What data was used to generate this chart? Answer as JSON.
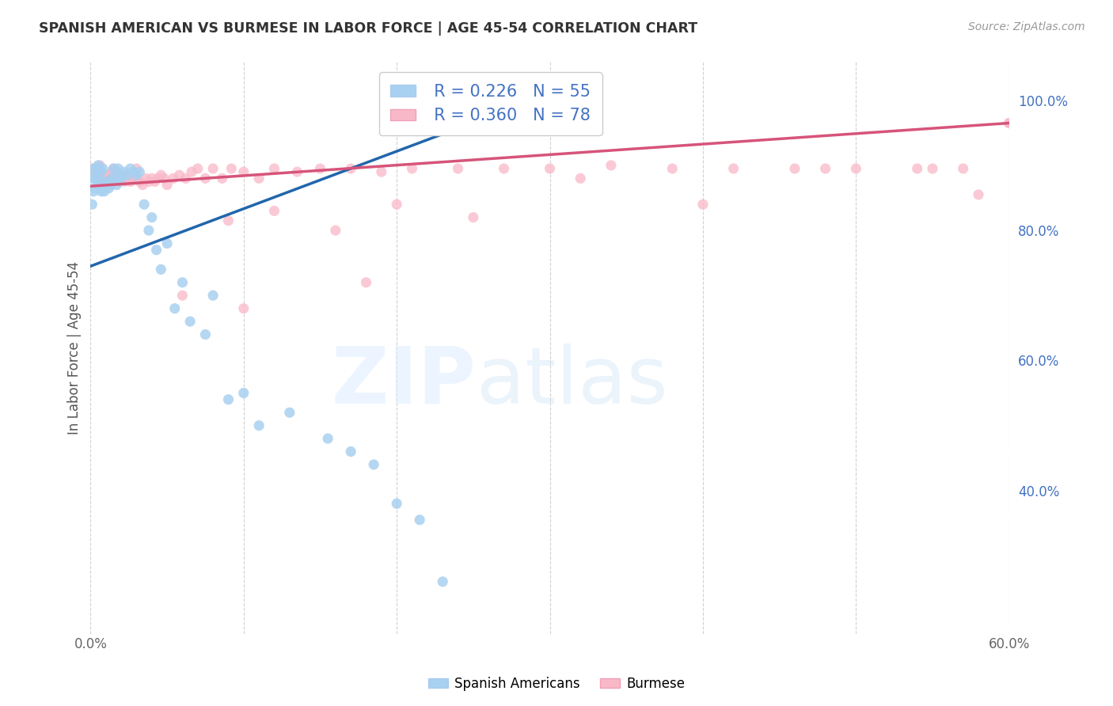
{
  "title": "SPANISH AMERICAN VS BURMESE IN LABOR FORCE | AGE 45-54 CORRELATION CHART",
  "source": "Source: ZipAtlas.com",
  "ylabel": "In Labor Force | Age 45-54",
  "xlim": [
    0.0,
    0.6
  ],
  "ylim": [
    0.18,
    1.06
  ],
  "blue_color": "#a8d0f0",
  "pink_color": "#f9b8c8",
  "blue_line_color": "#2166ac",
  "pink_line_color": "#d6547a",
  "legend_R_blue": "0.226",
  "legend_N_blue": "55",
  "legend_R_pink": "0.360",
  "legend_N_pink": "78",
  "blue_trend_x0": 0.0,
  "blue_trend_y0": 0.745,
  "blue_trend_x1": 0.3,
  "blue_trend_y1": 1.01,
  "pink_trend_x0": 0.0,
  "pink_trend_y0": 0.868,
  "pink_trend_x1": 0.6,
  "pink_trend_y1": 0.965,
  "spanish_x": [
    0.001,
    0.001,
    0.002,
    0.002,
    0.003,
    0.003,
    0.004,
    0.004,
    0.005,
    0.005,
    0.006,
    0.006,
    0.007,
    0.007,
    0.008,
    0.008,
    0.009,
    0.01,
    0.011,
    0.012,
    0.013,
    0.014,
    0.015,
    0.016,
    0.017,
    0.018,
    0.019,
    0.02,
    0.022,
    0.024,
    0.026,
    0.028,
    0.03,
    0.032,
    0.035,
    0.038,
    0.04,
    0.043,
    0.046,
    0.05,
    0.055,
    0.06,
    0.065,
    0.075,
    0.08,
    0.09,
    0.1,
    0.11,
    0.13,
    0.155,
    0.17,
    0.185,
    0.2,
    0.215,
    0.23
  ],
  "spanish_y": [
    0.88,
    0.84,
    0.895,
    0.86,
    0.88,
    0.865,
    0.895,
    0.88,
    0.9,
    0.87,
    0.895,
    0.875,
    0.89,
    0.86,
    0.895,
    0.875,
    0.86,
    0.87,
    0.875,
    0.865,
    0.87,
    0.88,
    0.895,
    0.88,
    0.87,
    0.895,
    0.885,
    0.88,
    0.89,
    0.885,
    0.895,
    0.89,
    0.885,
    0.89,
    0.84,
    0.8,
    0.82,
    0.77,
    0.74,
    0.78,
    0.68,
    0.72,
    0.66,
    0.64,
    0.7,
    0.54,
    0.55,
    0.5,
    0.52,
    0.48,
    0.46,
    0.44,
    0.38,
    0.355,
    0.26
  ],
  "burmese_x": [
    0.001,
    0.002,
    0.003,
    0.004,
    0.005,
    0.006,
    0.007,
    0.008,
    0.009,
    0.01,
    0.011,
    0.012,
    0.013,
    0.014,
    0.015,
    0.016,
    0.017,
    0.018,
    0.019,
    0.02,
    0.022,
    0.024,
    0.026,
    0.028,
    0.03,
    0.032,
    0.034,
    0.036,
    0.038,
    0.04,
    0.042,
    0.044,
    0.046,
    0.048,
    0.05,
    0.054,
    0.058,
    0.062,
    0.066,
    0.07,
    0.075,
    0.08,
    0.086,
    0.092,
    0.1,
    0.11,
    0.12,
    0.135,
    0.15,
    0.17,
    0.19,
    0.21,
    0.24,
    0.27,
    0.3,
    0.34,
    0.38,
    0.42,
    0.46,
    0.5,
    0.54,
    0.57,
    0.09,
    0.12,
    0.16,
    0.2,
    0.25,
    0.06,
    0.1,
    0.18,
    0.32,
    0.4,
    0.48,
    0.55,
    0.58,
    0.6,
    0.03,
    0.6
  ],
  "burmese_y": [
    0.895,
    0.89,
    0.885,
    0.88,
    0.895,
    0.9,
    0.88,
    0.885,
    0.875,
    0.88,
    0.885,
    0.875,
    0.88,
    0.89,
    0.895,
    0.88,
    0.89,
    0.875,
    0.88,
    0.885,
    0.875,
    0.88,
    0.875,
    0.88,
    0.88,
    0.875,
    0.87,
    0.88,
    0.875,
    0.88,
    0.875,
    0.88,
    0.885,
    0.88,
    0.87,
    0.88,
    0.885,
    0.88,
    0.89,
    0.895,
    0.88,
    0.895,
    0.88,
    0.895,
    0.89,
    0.88,
    0.895,
    0.89,
    0.895,
    0.895,
    0.89,
    0.895,
    0.895,
    0.895,
    0.895,
    0.9,
    0.895,
    0.895,
    0.895,
    0.895,
    0.895,
    0.895,
    0.815,
    0.83,
    0.8,
    0.84,
    0.82,
    0.7,
    0.68,
    0.72,
    0.88,
    0.84,
    0.895,
    0.895,
    0.855,
    0.965,
    0.895,
    0.965
  ]
}
